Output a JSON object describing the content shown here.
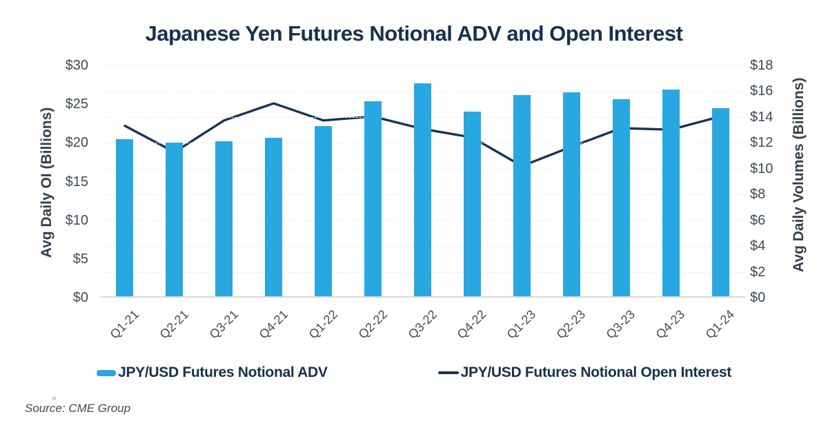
{
  "title": "Japanese Yen Futures Notional ADV and Open Interest",
  "source_note": "Source: CME Group",
  "colors": {
    "bar": "#29A7E1",
    "line": "#1B3254",
    "title_text": "#17304E",
    "tick_text": "#3E4954",
    "gridline": "#ECECEC",
    "axis_baseline": "#D9D9D9"
  },
  "legend": {
    "adv_label": "JPY/USD Futures Notional ADV",
    "oi_label": "JPY/USD Futures Notional Open Interest"
  },
  "chart_data": {
    "type": "bar+line combo",
    "title": "Japanese Yen Futures Notional ADV and Open Interest",
    "categories": [
      "Q1-21",
      "Q2-21",
      "Q3-21",
      "Q4-21",
      "Q1-22",
      "Q2-22",
      "Q3-22",
      "Q4-22",
      "Q1-23",
      "Q2-23",
      "Q3-23",
      "Q4-23",
      "Q1-24"
    ],
    "series": [
      {
        "name": "JPY/USD Futures Notional ADV",
        "type": "bar",
        "axis": "right",
        "color": "#29A7E1",
        "values": [
          12.2,
          11.9,
          12.0,
          12.3,
          13.2,
          15.1,
          16.5,
          14.3,
          15.6,
          15.8,
          15.3,
          16.0,
          14.6
        ]
      },
      {
        "name": "JPY/USD Futures Notional Open Interest",
        "type": "line",
        "axis": "left",
        "color": "#1B3254",
        "values": [
          22.2,
          18.8,
          22.9,
          25.1,
          22.9,
          23.4,
          21.8,
          20.7,
          17.0,
          19.5,
          21.9,
          21.7,
          23.4
        ]
      }
    ],
    "left_axis": {
      "label": "Avg Daily OI (Billions)",
      "ticks": [
        "$30",
        "$25",
        "$20",
        "$15",
        "$10",
        "$5",
        "$0"
      ],
      "range": [
        0,
        30
      ]
    },
    "right_axis": {
      "label": "Avg Daily Volumes (Billions)",
      "ticks": [
        "$18",
        "$16",
        "$14",
        "$12",
        "$10",
        "$8",
        "$6",
        "$4",
        "$2",
        "$0"
      ],
      "range": [
        0,
        18
      ]
    },
    "grid": {
      "horizontal": true,
      "interval_right_axis": 2,
      "style": "dashed light gray"
    },
    "legend_position": "bottom-center"
  }
}
